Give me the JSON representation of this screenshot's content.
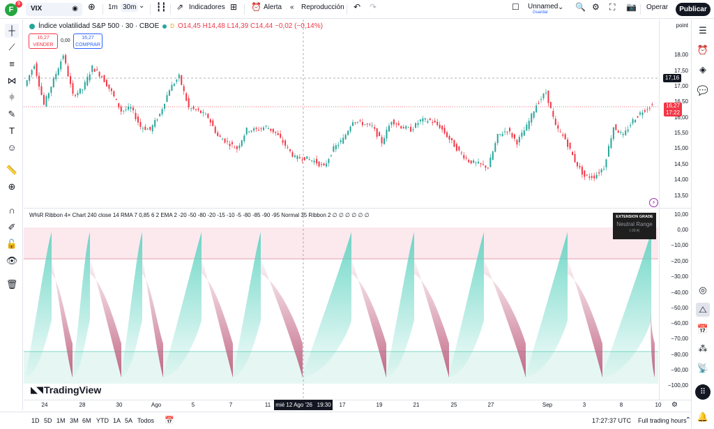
{
  "topbar": {
    "logo_letter": "F",
    "logo_badge": "9",
    "symbol": "VIX",
    "interval_1": "1m",
    "interval_2": "30m",
    "indicators_label": "Indicadores",
    "alert_label": "Alerta",
    "replay_label": "Reproducción",
    "layout_name": "Unnamed",
    "saved_label": "Guardar",
    "trade_label": "Operar",
    "publish_label": "Publicar"
  },
  "legend": {
    "title": "Índice volatilidad S&P 500 · 30 · CBOE",
    "data_flag": "D",
    "ohlc": "O14,45  H14,48  L14,39  C14,44  −0,02 (−0,14%)"
  },
  "order_buttons": {
    "sell_price": "16,27",
    "sell_label": "VENDER",
    "spread": "0,00",
    "buy_price": "16,27",
    "buy_label": "COMPRAR"
  },
  "indicator": {
    "legend": "W%R Ribbon 4× Chart 240 close 14 RMA 7 0,85 6 2 EMA 2 -20 -50 -80 -20 -15 -10 -5 -80 -85 -90 -95 Normal 35 Ribbon 2 ∅ ∅ ∅ ∅ ∅ ∅",
    "box_title": "EXTENSION GRADE",
    "box_state": "Neutral Range",
    "box_value": "(-20,4)"
  },
  "price_axis": {
    "header": "point",
    "labels": [
      "18,00",
      "17,50",
      "17,00",
      "16,50",
      "16,00",
      "15,50",
      "15,00",
      "14,50",
      "14,00",
      "13,50",
      "10,00",
      "0,00",
      "−10,00",
      "−20,00",
      "−30,00",
      "−40,00",
      "−50,00",
      "−60,00",
      "−70,00",
      "−80,00",
      "−90,00",
      "−100,00"
    ],
    "crosshair_price": "17,16",
    "last_price": "16,27",
    "last_countdown": "17:22"
  },
  "time_axis": {
    "ticks": [
      "24",
      "28",
      "30",
      "Ago",
      "5",
      "7",
      "11",
      "17",
      "19",
      "21",
      "25",
      "27",
      "Sep",
      "3",
      "8",
      "10"
    ],
    "cursor_date": "mié 12 Ago '26",
    "cursor_time": "19:30"
  },
  "bottombar": {
    "ranges": [
      "1D",
      "5D",
      "1M",
      "3M",
      "6M",
      "YTD",
      "1A",
      "5A",
      "Todos"
    ],
    "clock": "17:27:37 UTC",
    "session": "Full trading hours"
  },
  "brand": "TradingView",
  "colors": {
    "up": "#26a69a",
    "down": "#f23645",
    "ribbon_bull": "#5fd3c1",
    "ribbon_bear": "#c0607f",
    "accent": "#2962ff"
  },
  "chart_data": {
    "type": "line",
    "series": [
      {
        "values": [
          16.9,
          17.6,
          16.3,
          17.1,
          17.9,
          16.6,
          16.8,
          17.5,
          17.2,
          16.7,
          16.1,
          16.2,
          15.6,
          15.5,
          16.0,
          16.8,
          17.2,
          16.2,
          16.1,
          15.9,
          15.3,
          15.1,
          14.9,
          15.5,
          15.5,
          15.6,
          15.4,
          15.0,
          14.6,
          14.6,
          14.5,
          14.3,
          14.9,
          15.2,
          15.8,
          15.7,
          15.6,
          15.1,
          15.8,
          15.6,
          15.5,
          15.8,
          15.8,
          15.6,
          15.2,
          14.8,
          14.5,
          14.4,
          14.3,
          15.3,
          15.5,
          15.1,
          15.6,
          16.3,
          16.7,
          15.6,
          15.2,
          14.5,
          14.0,
          14.0,
          14.3,
          15.6,
          15.3,
          15.8,
          16.1,
          16.3
        ]
      }
    ]
  }
}
